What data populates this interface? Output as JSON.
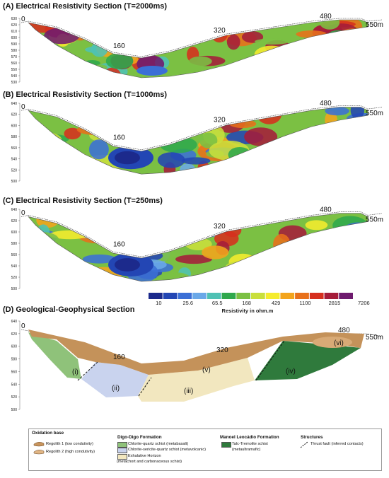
{
  "panels": {
    "a": {
      "title": "(A) Electrical Resistivity Section (T=2000ms)",
      "y_ticks": [
        "630",
        "620",
        "610",
        "600",
        "590",
        "580",
        "570",
        "560",
        "550",
        "540",
        "530"
      ],
      "dist_labels": [
        "0",
        "160",
        "320",
        "480",
        "550m"
      ]
    },
    "b": {
      "title": "(B) Electrical Resistivity Section (T=1000ms)",
      "y_ticks": [
        "640",
        "620",
        "600",
        "580",
        "560",
        "540",
        "520",
        "500"
      ],
      "dist_labels": [
        "0",
        "160",
        "320",
        "480",
        "550m"
      ]
    },
    "c": {
      "title": "(C) Electrical Resistivity Section (T=250ms)",
      "y_ticks": [
        "640",
        "620",
        "600",
        "580",
        "560",
        "540",
        "520",
        "500"
      ],
      "dist_labels": [
        "0",
        "160",
        "320",
        "480",
        "550m"
      ]
    },
    "d": {
      "title": "(D) Geological-Geophysical Section",
      "y_ticks": [
        "640",
        "620",
        "600",
        "580",
        "560",
        "540",
        "520",
        "500"
      ],
      "dist_labels": [
        "0",
        "160",
        "320",
        "480",
        "550m"
      ],
      "unit_labels": [
        "(i)",
        "(ii)",
        "(iii)",
        "(iv)",
        "(v)",
        "(vi)"
      ]
    }
  },
  "colorbar": {
    "ticks": [
      "10",
      "25.6",
      "65.5",
      "168",
      "429",
      "1100",
      "2815",
      "7206"
    ],
    "caption": "Resistivity in ohm.m",
    "colors": [
      "#1c2a8c",
      "#2346b4",
      "#3b6fd6",
      "#6aa8e8",
      "#4fc1b4",
      "#2fa84c",
      "#7bc043",
      "#c9df3c",
      "#f5ec2d",
      "#f3a41c",
      "#e8701a",
      "#d62f1e",
      "#a51c3a",
      "#6e1a6e"
    ]
  },
  "geo_colors": {
    "regolith1": "#c8945c",
    "regolith2": "#e0b584",
    "unit_i": "#8fc27a",
    "unit_ii": "#c9d3ee",
    "unit_iii": "#f2e7bf",
    "unit_iv": "#2f7a3c",
    "unit_v": "#c4925a",
    "unit_vi": "#d8aa76"
  },
  "legend": {
    "oxidation_head": "Oxidation base",
    "regolith1": "Regolith 1 (low condutivity)",
    "regolith2": "Regolith 2 (high condutivity)",
    "digo_head": "Digo-Digo Formation",
    "digo1": "Chlorite-quartz schist (metabasalt)",
    "digo2": "Chlorite-sericite-quartz schist (metavolcanic)",
    "digo3": "Exhalative Horizon",
    "digo3b": "(metachort and carbonaceous schist)",
    "manoel_head": "Manoel Leocádio Formation",
    "manoel1": "Talc-Tremolite schist",
    "manoel1b": "(metaultramafic)",
    "struct_head": "Structures",
    "struct1": "Thrust fault (inferred contacts)"
  }
}
